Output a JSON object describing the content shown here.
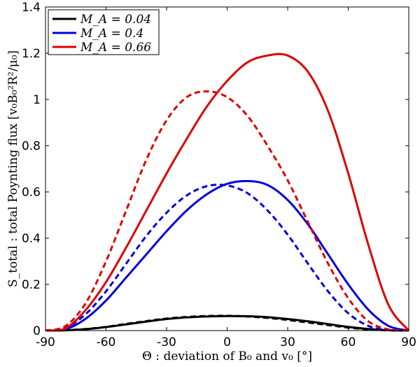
{
  "chart_data": {
    "type": "line",
    "xlabel": "Θ : deviation of B₀ and v₀ [°]",
    "ylabel": "S_total : total Poynting flux [v₀B₀²R²/μ₀]",
    "xlim": [
      -90,
      90
    ],
    "ylim": [
      0,
      1.4
    ],
    "xticks": [
      -90,
      -60,
      -30,
      0,
      30,
      60,
      90
    ],
    "yticks": [
      0,
      0.2,
      0.4,
      0.6,
      0.8,
      1,
      1.2,
      1.4
    ],
    "ytick_labels": [
      "0",
      "0.2",
      "0.4",
      "0.6",
      "0.8",
      "1",
      "1.2",
      "1.4"
    ],
    "grid": false,
    "legend_position": "top-left",
    "legend": [
      {
        "label": "M_A = 0.04",
        "color": "#000000"
      },
      {
        "label": "M_A = 0.4",
        "color": "#0000dd"
      },
      {
        "label": "M_A = 0.66",
        "color": "#dd0000"
      }
    ],
    "series": [
      {
        "name": "M_A = 0.04 solid",
        "color": "#000000",
        "style": "solid",
        "x": [
          -90,
          -80,
          -70,
          -60,
          -50,
          -40,
          -30,
          -20,
          -10,
          0,
          10,
          20,
          30,
          40,
          50,
          60,
          70,
          80,
          90
        ],
        "y": [
          0,
          0.001,
          0.006,
          0.015,
          0.027,
          0.039,
          0.05,
          0.057,
          0.061,
          0.063,
          0.062,
          0.058,
          0.05,
          0.04,
          0.028,
          0.016,
          0.007,
          0.002,
          0
        ]
      },
      {
        "name": "M_A = 0.04 dashed",
        "color": "#000000",
        "style": "dashed",
        "x": [
          -90,
          -80,
          -70,
          -60,
          -50,
          -40,
          -30,
          -20,
          -10,
          0,
          10,
          20,
          30,
          40,
          50,
          60,
          70,
          80,
          90
        ],
        "y": [
          0,
          0.002,
          0.007,
          0.016,
          0.029,
          0.041,
          0.052,
          0.059,
          0.063,
          0.064,
          0.061,
          0.055,
          0.046,
          0.035,
          0.024,
          0.013,
          0.005,
          0.001,
          0
        ]
      },
      {
        "name": "M_A = 0.4 solid",
        "color": "#0000dd",
        "style": "solid",
        "x": [
          -90,
          -80,
          -70,
          -60,
          -50,
          -40,
          -30,
          -20,
          -10,
          0,
          10,
          20,
          30,
          40,
          50,
          60,
          70,
          80,
          90
        ],
        "y": [
          0,
          0.006,
          0.052,
          0.13,
          0.23,
          0.33,
          0.43,
          0.52,
          0.59,
          0.635,
          0.647,
          0.63,
          0.565,
          0.46,
          0.33,
          0.2,
          0.09,
          0.02,
          0
        ]
      },
      {
        "name": "M_A = 0.4 dashed",
        "color": "#0000dd",
        "style": "dashed",
        "x": [
          -90,
          -80,
          -70,
          -60,
          -50,
          -40,
          -30,
          -20,
          -10,
          0,
          10,
          20,
          30,
          40,
          50,
          60,
          70,
          80,
          90
        ],
        "y": [
          0,
          0.012,
          0.072,
          0.17,
          0.29,
          0.41,
          0.51,
          0.585,
          0.625,
          0.628,
          0.595,
          0.52,
          0.415,
          0.29,
          0.17,
          0.075,
          0.02,
          0.002,
          0
        ]
      },
      {
        "name": "M_A = 0.66 solid",
        "color": "#dd0000",
        "style": "solid",
        "x": [
          -90,
          -80,
          -70,
          -60,
          -50,
          -40,
          -30,
          -20,
          -10,
          0,
          10,
          20,
          30,
          40,
          50,
          60,
          70,
          80,
          90
        ],
        "y": [
          0,
          0.01,
          0.09,
          0.21,
          0.36,
          0.52,
          0.68,
          0.83,
          0.97,
          1.08,
          1.16,
          1.19,
          1.19,
          1.12,
          0.95,
          0.68,
          0.37,
          0.11,
          0
        ]
      },
      {
        "name": "M_A = 0.66 dashed",
        "color": "#dd0000",
        "style": "dashed",
        "x": [
          -90,
          -80,
          -70,
          -60,
          -50,
          -40,
          -30,
          -20,
          -10,
          0,
          10,
          20,
          30,
          40,
          50,
          60,
          70,
          80,
          90
        ],
        "y": [
          0,
          0.02,
          0.12,
          0.3,
          0.52,
          0.74,
          0.91,
          1.01,
          1.035,
          1.01,
          0.93,
          0.8,
          0.65,
          0.47,
          0.29,
          0.14,
          0.04,
          0.005,
          0
        ]
      }
    ]
  }
}
